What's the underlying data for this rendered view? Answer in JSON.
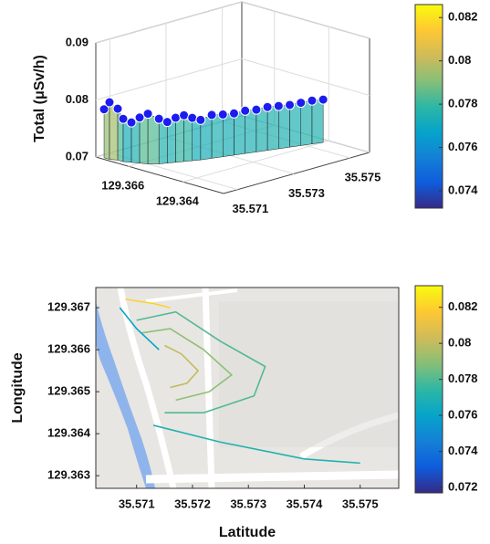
{
  "chart_data": [
    {
      "type": "surface3d",
      "zlabel": "Total (μSv/h)",
      "x": [
        35.5706,
        35.5706,
        35.5707,
        35.5707,
        35.5708,
        35.5709,
        35.571,
        35.5712,
        35.5714,
        35.5716,
        35.5718,
        35.572,
        35.5722,
        35.5725,
        35.5728,
        35.5731,
        35.5734,
        35.5737,
        35.574,
        35.5743,
        35.5746,
        35.5749,
        35.5752,
        35.5755
      ],
      "y": [
        129.367,
        129.3668,
        129.3666,
        129.3664,
        129.3662,
        129.366,
        129.3658,
        129.3656,
        129.3655,
        129.3654,
        129.3653,
        129.3652,
        129.3651,
        129.365,
        129.3649,
        129.3648,
        129.3647,
        129.3646,
        129.3645,
        129.3644,
        129.3643,
        129.3642,
        129.3641,
        129.364
      ],
      "values": [
        0.0785,
        0.08,
        0.079,
        0.0775,
        0.077,
        0.078,
        0.0788,
        0.0779,
        0.0772,
        0.0778,
        0.0781,
        0.0775,
        0.077,
        0.0776,
        0.0774,
        0.0773,
        0.0775,
        0.0774,
        0.0776,
        0.0775,
        0.0774,
        0.0775,
        0.0776,
        0.0775
      ],
      "xlim": [
        35.5705,
        35.5757
      ],
      "xticks": [
        35.571,
        35.573,
        35.575
      ],
      "ylim": [
        129.3625,
        129.3672
      ],
      "yticks": [
        129.366,
        129.364
      ],
      "zlim": [
        0.07,
        0.09
      ],
      "zticks": [
        0.07,
        0.08,
        0.09
      ],
      "marker_color": "#1c1cf0",
      "clim": [
        0.0732,
        0.0826
      ],
      "cticks": [
        0.074,
        0.076,
        0.078,
        0.08,
        0.082
      ],
      "colormap": [
        "#352a87",
        "#0f5cdd",
        "#1481d6",
        "#06a4ca",
        "#2eb7a4",
        "#87bf77",
        "#d1bb59",
        "#fec832",
        "#f9fb0e"
      ],
      "grid": true
    },
    {
      "type": "contour",
      "xlabel": "Latitude",
      "ylabel": "Longitude",
      "xlim": [
        35.57027,
        35.57569
      ],
      "xticks": [
        35.571,
        35.572,
        35.573,
        35.574,
        35.575
      ],
      "ylim": [
        129.3627,
        129.36748
      ],
      "yticks": [
        129.363,
        129.364,
        129.365,
        129.366,
        129.367
      ],
      "contours": [
        {
          "level": 0.082,
          "x": [
            35.5708,
            35.5713,
            35.5716
          ],
          "y": [
            129.3672,
            129.3671,
            129.367
          ]
        },
        {
          "level": 0.08,
          "x": [
            35.5715,
            35.5718,
            35.5721,
            35.5719,
            35.5716
          ],
          "y": [
            129.3661,
            129.3659,
            129.3655,
            129.3652,
            129.3651
          ]
        },
        {
          "level": 0.079,
          "x": [
            35.5711,
            35.5716,
            35.5722,
            35.5727,
            35.5723,
            35.5717
          ],
          "y": [
            129.3664,
            129.3665,
            129.366,
            129.3654,
            129.365,
            129.3648
          ]
        },
        {
          "level": 0.078,
          "x": [
            35.571,
            35.5717,
            35.5725,
            35.5733,
            35.5731,
            35.5722,
            35.5715
          ],
          "y": [
            129.3667,
            129.3669,
            129.3662,
            129.3656,
            129.3649,
            129.3645,
            129.3645
          ]
        },
        {
          "level": 0.077,
          "x": [
            35.5713,
            35.5725,
            35.574,
            35.575
          ],
          "y": [
            129.3642,
            129.3638,
            129.3634,
            129.3633
          ]
        },
        {
          "level": 0.076,
          "x": [
            35.5707,
            35.571,
            35.5714
          ],
          "y": [
            129.367,
            129.3665,
            129.366
          ]
        }
      ],
      "clim": [
        0.0717,
        0.0832
      ],
      "cticks": [
        0.072,
        0.074,
        0.076,
        0.078,
        0.08,
        0.082
      ],
      "colormap": [
        "#352a87",
        "#0f5cdd",
        "#1481d6",
        "#06a4ca",
        "#2eb7a4",
        "#87bf77",
        "#d1bb59",
        "#fec832",
        "#f9fb0e"
      ]
    }
  ]
}
